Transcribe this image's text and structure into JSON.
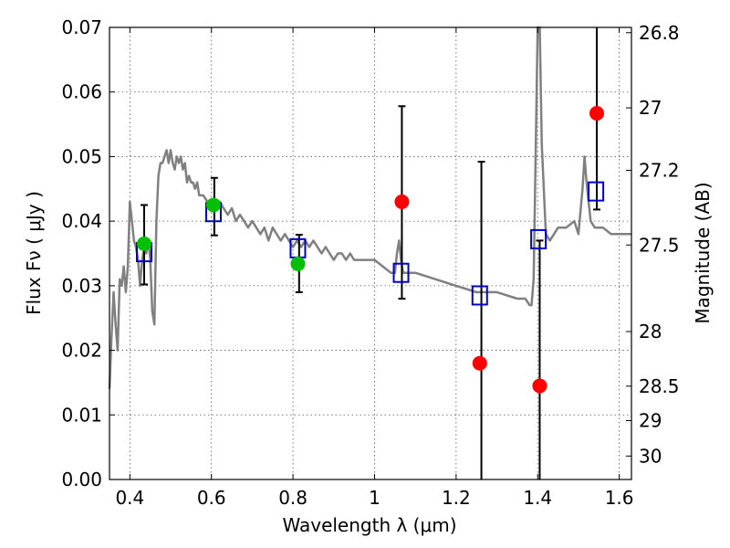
{
  "chart_data": {
    "type": "scatter",
    "xlabel": "Wavelength  λ (μm)",
    "ylabel": "Flux  Fν  ( μJy )",
    "ylabel_right": "Magnitude (AB)",
    "xlim": [
      0.35,
      1.63
    ],
    "ylim": [
      0.0,
      0.07
    ],
    "grid": true,
    "x_ticks": [
      {
        "value": 0.4,
        "label": "0.4"
      },
      {
        "value": 0.6,
        "label": "0.6"
      },
      {
        "value": 0.8,
        "label": "0.8"
      },
      {
        "value": 1.0,
        "label": "1"
      },
      {
        "value": 1.2,
        "label": "1.2"
      },
      {
        "value": 1.4,
        "label": "1.4"
      },
      {
        "value": 1.6,
        "label": "1.6"
      }
    ],
    "y_ticks": [
      {
        "value": 0.0,
        "label": "0.00"
      },
      {
        "value": 0.01,
        "label": "0.01"
      },
      {
        "value": 0.02,
        "label": "0.02"
      },
      {
        "value": 0.03,
        "label": "0.03"
      },
      {
        "value": 0.04,
        "label": "0.04"
      },
      {
        "value": 0.05,
        "label": "0.05"
      },
      {
        "value": 0.06,
        "label": "0.06"
      },
      {
        "value": 0.07,
        "label": "0.07"
      }
    ],
    "mag_ticks": [
      {
        "value": 26.8,
        "label": "26.8"
      },
      {
        "value": 27.0,
        "label": "27"
      },
      {
        "value": 27.2,
        "label": "27.2"
      },
      {
        "value": 27.5,
        "label": "27.5"
      },
      {
        "value": 28.0,
        "label": "28"
      },
      {
        "value": 28.5,
        "label": "28.5"
      },
      {
        "value": 29.0,
        "label": "29"
      },
      {
        "value": 30.0,
        "label": "30"
      }
    ],
    "colors": {
      "spectrum": "#808080",
      "green": "#00c000",
      "red": "#ff0000",
      "model": "#0000cc",
      "errorbar": "#000000"
    },
    "spectrum": [
      [
        0.35,
        0.014
      ],
      [
        0.355,
        0.022
      ],
      [
        0.36,
        0.029
      ],
      [
        0.365,
        0.024
      ],
      [
        0.37,
        0.02
      ],
      [
        0.375,
        0.031
      ],
      [
        0.38,
        0.03
      ],
      [
        0.385,
        0.033
      ],
      [
        0.39,
        0.029
      ],
      [
        0.395,
        0.033
      ],
      [
        0.4,
        0.043
      ],
      [
        0.405,
        0.04
      ],
      [
        0.41,
        0.037
      ],
      [
        0.415,
        0.036
      ],
      [
        0.42,
        0.034
      ],
      [
        0.425,
        0.03
      ],
      [
        0.43,
        0.034
      ],
      [
        0.435,
        0.036
      ],
      [
        0.44,
        0.035
      ],
      [
        0.445,
        0.037
      ],
      [
        0.45,
        0.034
      ],
      [
        0.455,
        0.026
      ],
      [
        0.46,
        0.024
      ],
      [
        0.465,
        0.04
      ],
      [
        0.47,
        0.047
      ],
      [
        0.475,
        0.049
      ],
      [
        0.48,
        0.049
      ],
      [
        0.485,
        0.05
      ],
      [
        0.49,
        0.051
      ],
      [
        0.495,
        0.049
      ],
      [
        0.5,
        0.051
      ],
      [
        0.505,
        0.049
      ],
      [
        0.51,
        0.048
      ],
      [
        0.515,
        0.05
      ],
      [
        0.52,
        0.049
      ],
      [
        0.525,
        0.05
      ],
      [
        0.53,
        0.048
      ],
      [
        0.535,
        0.049
      ],
      [
        0.54,
        0.046
      ],
      [
        0.545,
        0.047
      ],
      [
        0.55,
        0.046
      ],
      [
        0.555,
        0.046
      ],
      [
        0.56,
        0.045
      ],
      [
        0.565,
        0.046
      ],
      [
        0.57,
        0.044
      ],
      [
        0.58,
        0.044
      ],
      [
        0.59,
        0.043
      ],
      [
        0.6,
        0.043
      ],
      [
        0.61,
        0.042
      ],
      [
        0.62,
        0.043
      ],
      [
        0.63,
        0.042
      ],
      [
        0.64,
        0.041
      ],
      [
        0.65,
        0.042
      ],
      [
        0.66,
        0.04
      ],
      [
        0.67,
        0.041
      ],
      [
        0.68,
        0.04
      ],
      [
        0.69,
        0.039
      ],
      [
        0.7,
        0.04
      ],
      [
        0.71,
        0.039
      ],
      [
        0.72,
        0.038
      ],
      [
        0.73,
        0.039
      ],
      [
        0.74,
        0.037
      ],
      [
        0.75,
        0.039
      ],
      [
        0.76,
        0.038
      ],
      [
        0.77,
        0.037
      ],
      [
        0.78,
        0.038
      ],
      [
        0.79,
        0.037
      ],
      [
        0.8,
        0.036
      ],
      [
        0.81,
        0.037
      ],
      [
        0.82,
        0.036
      ],
      [
        0.83,
        0.037
      ],
      [
        0.84,
        0.036
      ],
      [
        0.85,
        0.037
      ],
      [
        0.86,
        0.036
      ],
      [
        0.87,
        0.035
      ],
      [
        0.88,
        0.036
      ],
      [
        0.89,
        0.035
      ],
      [
        0.9,
        0.034
      ],
      [
        0.91,
        0.035
      ],
      [
        0.92,
        0.035
      ],
      [
        0.93,
        0.034
      ],
      [
        0.94,
        0.035
      ],
      [
        0.95,
        0.034
      ],
      [
        0.97,
        0.034
      ],
      [
        0.99,
        0.034
      ],
      [
        1.0,
        0.034
      ],
      [
        1.02,
        0.033
      ],
      [
        1.04,
        0.032
      ],
      [
        1.05,
        0.032
      ],
      [
        1.055,
        0.035
      ],
      [
        1.06,
        0.037
      ],
      [
        1.065,
        0.034
      ],
      [
        1.07,
        0.032
      ],
      [
        1.1,
        0.032
      ],
      [
        1.15,
        0.031
      ],
      [
        1.2,
        0.03
      ],
      [
        1.25,
        0.029
      ],
      [
        1.3,
        0.029
      ],
      [
        1.35,
        0.028
      ],
      [
        1.37,
        0.028
      ],
      [
        1.38,
        0.027
      ],
      [
        1.385,
        0.027
      ],
      [
        1.39,
        0.031
      ],
      [
        1.395,
        0.05
      ],
      [
        1.4,
        0.07
      ],
      [
        1.405,
        0.07
      ],
      [
        1.41,
        0.052
      ],
      [
        1.42,
        0.038
      ],
      [
        1.43,
        0.037
      ],
      [
        1.45,
        0.039
      ],
      [
        1.47,
        0.039
      ],
      [
        1.49,
        0.04
      ],
      [
        1.5,
        0.038
      ],
      [
        1.51,
        0.045
      ],
      [
        1.515,
        0.05
      ],
      [
        1.52,
        0.046
      ],
      [
        1.53,
        0.04
      ],
      [
        1.54,
        0.039
      ],
      [
        1.56,
        0.039
      ],
      [
        1.58,
        0.038
      ],
      [
        1.6,
        0.038
      ],
      [
        1.63,
        0.038
      ]
    ],
    "green_points": [
      {
        "x": 0.435,
        "y": 0.0365
      },
      {
        "x": 0.605,
        "y": 0.0425
      },
      {
        "x": 0.812,
        "y": 0.0334
      }
    ],
    "red_points": [
      {
        "x": 1.067,
        "y": 0.043
      },
      {
        "x": 1.258,
        "y": 0.018
      },
      {
        "x": 1.405,
        "y": 0.0145
      },
      {
        "x": 1.545,
        "y": 0.0567
      }
    ],
    "model_points": [
      {
        "x": 0.435,
        "y": 0.0352
      },
      {
        "x": 0.605,
        "y": 0.0414
      },
      {
        "x": 0.812,
        "y": 0.0358
      },
      {
        "x": 1.065,
        "y": 0.032
      },
      {
        "x": 1.258,
        "y": 0.0285
      },
      {
        "x": 1.402,
        "y": 0.0372
      },
      {
        "x": 1.543,
        "y": 0.0446
      }
    ],
    "error_bars": [
      {
        "x": 0.435,
        "low": 0.0302,
        "high": 0.0425
      },
      {
        "x": 0.607,
        "low": 0.0378,
        "high": 0.0467
      },
      {
        "x": 0.815,
        "low": 0.029,
        "high": 0.0379
      },
      {
        "x": 1.067,
        "low": 0.028,
        "high": 0.0578
      },
      {
        "x": 1.262,
        "low": 0.0,
        "high": 0.0492
      },
      {
        "x": 1.405,
        "low": 0.0,
        "high": 0.037
      },
      {
        "x": 1.545,
        "low": 0.0418,
        "high": 0.07
      }
    ]
  }
}
